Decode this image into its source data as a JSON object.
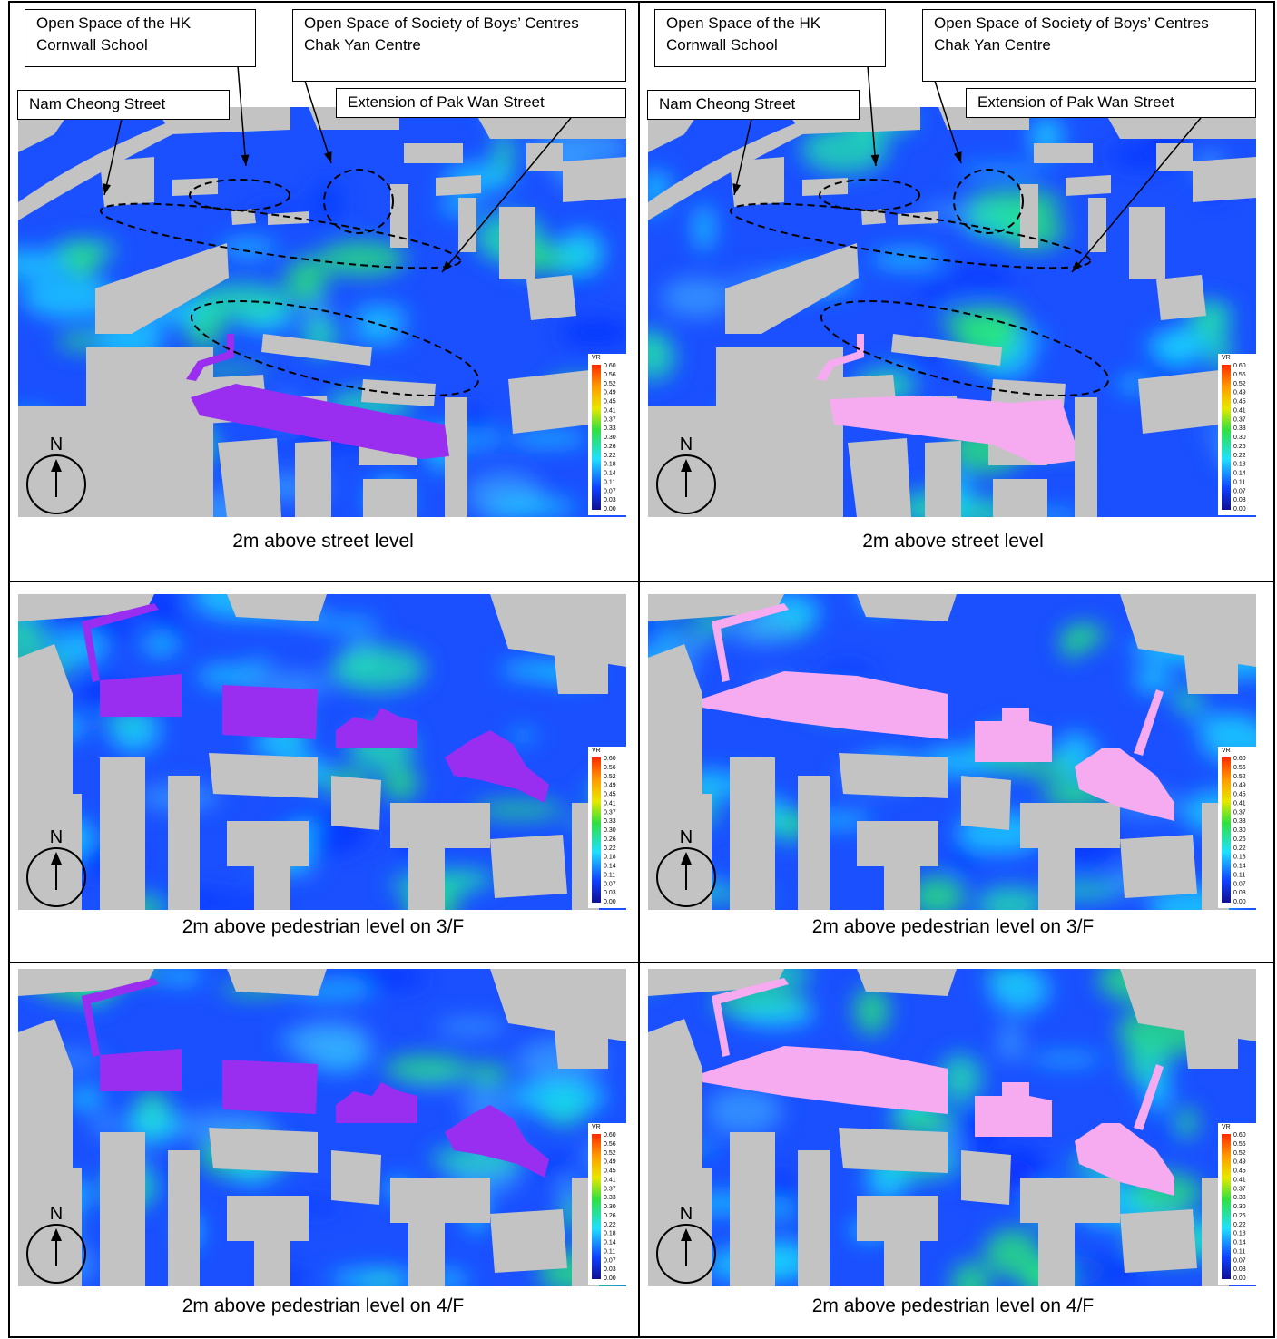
{
  "callouts": [
    "Open Space of the HK Cornwall School",
    "Open Space of Society of Boys’ Centres Chak Yan Centre",
    "Nam Cheong Street",
    "Extension of Pak Wan Street"
  ],
  "north": "N",
  "legend": {
    "title": "VR",
    "ticks": [
      "0.60",
      "0.56",
      "0.52",
      "0.49",
      "0.45",
      "0.41",
      "0.37",
      "0.33",
      "0.30",
      "0.26",
      "0.22",
      "0.18",
      "0.14",
      "0.11",
      "0.07",
      "0.03",
      "0.00"
    ]
  },
  "table": {
    "rows": [
      [
        {
          "caption": "2m above street level"
        },
        {
          "caption": "2m above street level"
        }
      ],
      [
        {
          "caption": "2m above pedestrian level on 3/F"
        },
        {
          "caption": "2m above pedestrian level on 3/F"
        }
      ],
      [
        {
          "caption": "2m above pedestrian level on 4/F"
        },
        {
          "caption": "2m above pedestrian level on 4/F"
        }
      ]
    ]
  }
}
